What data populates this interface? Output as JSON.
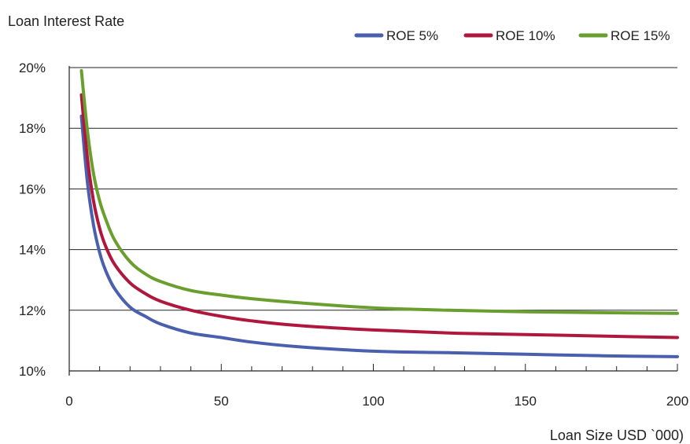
{
  "chart_data": {
    "type": "line",
    "title": "",
    "ylabel": "Loan Interest Rate",
    "xlabel": "Loan Size USD `000)",
    "xlim": [
      0,
      200
    ],
    "ylim": [
      10,
      20
    ],
    "x_ticks": [
      0,
      50,
      100,
      150,
      200
    ],
    "x_tick_labels": [
      "0",
      "50",
      "100",
      "150",
      "200"
    ],
    "y_ticks": [
      10,
      12,
      14,
      16,
      18,
      20
    ],
    "y_tick_labels": [
      "10%",
      "12%",
      "14%",
      "16%",
      "18%",
      "20%"
    ],
    "grid": "horizontal",
    "legend_position": "top-right",
    "series": [
      {
        "name": "ROE 5%",
        "color": "#4a5fad",
        "x": [
          4,
          6,
          8,
          10,
          12,
          15,
          20,
          25,
          30,
          40,
          50,
          60,
          75,
          100,
          125,
          150,
          175,
          200
        ],
        "y": [
          18.4,
          16.2,
          14.8,
          13.9,
          13.3,
          12.7,
          12.1,
          11.8,
          11.55,
          11.25,
          11.1,
          10.95,
          10.8,
          10.65,
          10.6,
          10.55,
          10.5,
          10.47
        ]
      },
      {
        "name": "ROE 10%",
        "color": "#b0173d",
        "x": [
          4,
          6,
          8,
          10,
          12,
          15,
          20,
          25,
          30,
          40,
          50,
          60,
          75,
          100,
          125,
          150,
          175,
          200
        ],
        "y": [
          19.1,
          17.0,
          15.6,
          14.7,
          14.1,
          13.5,
          12.9,
          12.55,
          12.3,
          12.0,
          11.8,
          11.65,
          11.5,
          11.35,
          11.25,
          11.2,
          11.15,
          11.1
        ]
      },
      {
        "name": "ROE 15%",
        "color": "#6a9e2e",
        "x": [
          4,
          6,
          8,
          10,
          12,
          15,
          20,
          25,
          30,
          40,
          50,
          60,
          75,
          100,
          125,
          150,
          175,
          200
        ],
        "y": [
          19.9,
          17.9,
          16.5,
          15.6,
          15.0,
          14.3,
          13.6,
          13.2,
          12.95,
          12.65,
          12.5,
          12.38,
          12.25,
          12.08,
          12.0,
          11.95,
          11.92,
          11.9
        ]
      }
    ]
  }
}
